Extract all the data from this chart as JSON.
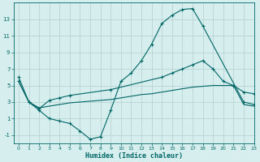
{
  "title": "",
  "xlabel": "Humidex (Indice chaleur)",
  "ylabel": "",
  "bg_color": "#d6eeed",
  "grid_color": "#b8d4d4",
  "line_color": "#006666",
  "x_min": -0.5,
  "x_max": 23,
  "y_min": -2,
  "y_max": 15,
  "yticks": [
    -1,
    1,
    3,
    5,
    7,
    9,
    11,
    13
  ],
  "xticks": [
    0,
    1,
    2,
    3,
    4,
    5,
    6,
    7,
    8,
    9,
    10,
    11,
    12,
    13,
    14,
    15,
    16,
    17,
    18,
    19,
    20,
    21,
    22,
    23
  ],
  "series1_x": [
    0,
    1,
    2,
    3,
    4,
    5,
    6,
    7,
    8,
    9,
    10,
    11,
    12,
    13,
    14,
    15,
    16,
    17,
    18,
    22,
    23
  ],
  "series1_y": [
    6.0,
    3.0,
    2.0,
    1.0,
    0.7,
    0.4,
    -0.5,
    -1.5,
    -1.2,
    2.0,
    5.5,
    6.5,
    8.0,
    10.0,
    12.5,
    13.5,
    14.2,
    14.3,
    12.2,
    3.0,
    2.7
  ],
  "series2_x": [
    0,
    1,
    2,
    3,
    4,
    5,
    9,
    14,
    15,
    16,
    17,
    18,
    19,
    20,
    21,
    22,
    23
  ],
  "series2_y": [
    5.5,
    3.0,
    2.2,
    3.2,
    3.5,
    3.8,
    4.5,
    6.0,
    6.5,
    7.0,
    7.5,
    8.0,
    7.0,
    5.5,
    5.0,
    4.2,
    4.0
  ],
  "series3_x": [
    0,
    1,
    2,
    3,
    4,
    5,
    6,
    7,
    8,
    9,
    10,
    11,
    12,
    13,
    14,
    15,
    16,
    17,
    18,
    19,
    20,
    21,
    22,
    23
  ],
  "series3_y": [
    5.5,
    3.0,
    2.3,
    2.5,
    2.7,
    2.9,
    3.0,
    3.1,
    3.2,
    3.3,
    3.5,
    3.7,
    3.9,
    4.0,
    4.2,
    4.4,
    4.6,
    4.8,
    4.9,
    5.0,
    5.0,
    5.0,
    2.7,
    2.5
  ]
}
